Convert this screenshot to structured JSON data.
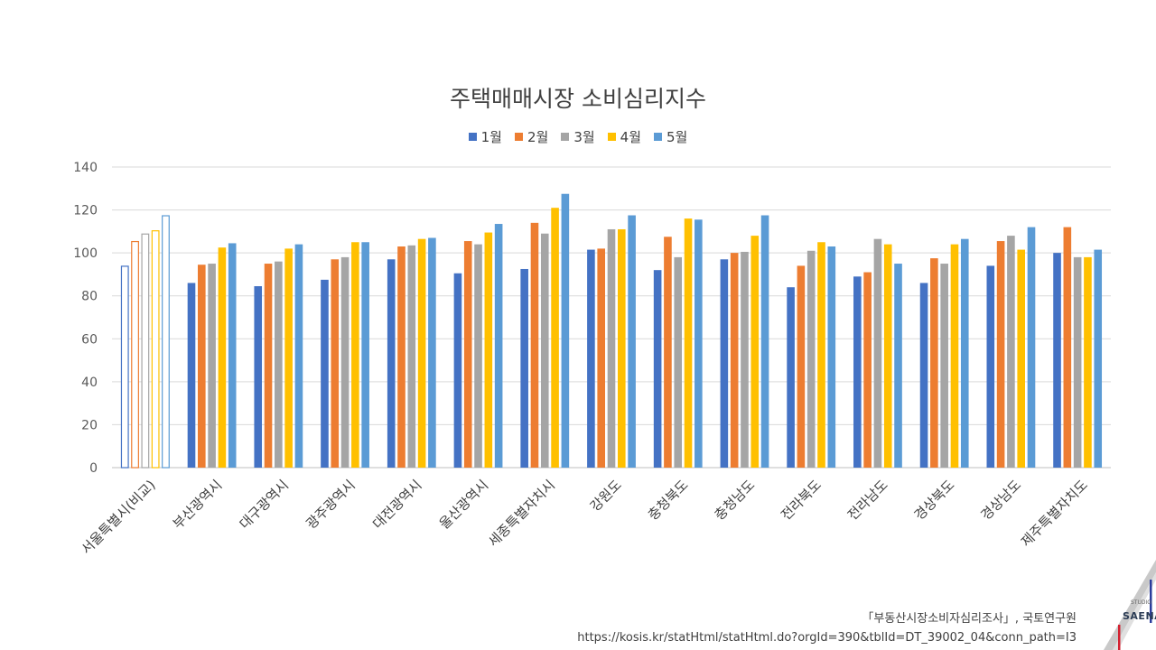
{
  "chart_data": {
    "type": "bar",
    "title": "주택매매시장 소비심리지수",
    "xlabel": "",
    "ylabel": "",
    "ylim": [
      0,
      140
    ],
    "yticks": [
      0,
      20,
      40,
      60,
      80,
      100,
      120,
      140
    ],
    "grid": true,
    "legend_position": "top",
    "categories": [
      "서울특별시(비교)",
      "부산광역시",
      "대구광역시",
      "광주광역시",
      "대전광역시",
      "울산광역시",
      "세종특별자치시",
      "강원도",
      "충청북도",
      "충청남도",
      "전라북도",
      "전라남도",
      "경상북도",
      "경상남도",
      "제주특별자치도"
    ],
    "hollow_categories": [
      "서울특별시(비교)"
    ],
    "series": [
      {
        "name": "1월",
        "color": "#4472C4",
        "values": [
          94,
          86,
          84.5,
          87.5,
          97,
          90.5,
          92.5,
          101.5,
          92,
          97,
          84,
          89,
          86,
          94,
          100
        ]
      },
      {
        "name": "2월",
        "color": "#ED7D31",
        "values": [
          105.5,
          94.5,
          95,
          97,
          103,
          105.5,
          114,
          102,
          107.5,
          100,
          94,
          91,
          97.5,
          105.5,
          112
        ]
      },
      {
        "name": "3월",
        "color": "#A5A5A5",
        "values": [
          109,
          95,
          96,
          98,
          103.5,
          104,
          109,
          111,
          98,
          100.5,
          101,
          106.5,
          95,
          108,
          98
        ]
      },
      {
        "name": "4월",
        "color": "#FFC000",
        "values": [
          110.5,
          102.5,
          102,
          105,
          106.5,
          109.5,
          121,
          111,
          116,
          108,
          105,
          104,
          104,
          101.5,
          98
        ]
      },
      {
        "name": "5월",
        "color": "#5B9BD5",
        "values": [
          117.5,
          104.5,
          104,
          105,
          107,
          113.5,
          127.5,
          117.5,
          115.5,
          117.5,
          103,
          95,
          106.5,
          112,
          101.5
        ]
      }
    ]
  },
  "source": {
    "line1": "「부동산시장소비자심리조사」, 국토연구원",
    "line2": "https://kosis.kr/statHtml/statHtml.do?orgId=390&tblId=DT_39002_04&conn_path=I3"
  },
  "logo": {
    "studio": "STUDIO",
    "name": "SAENA"
  }
}
